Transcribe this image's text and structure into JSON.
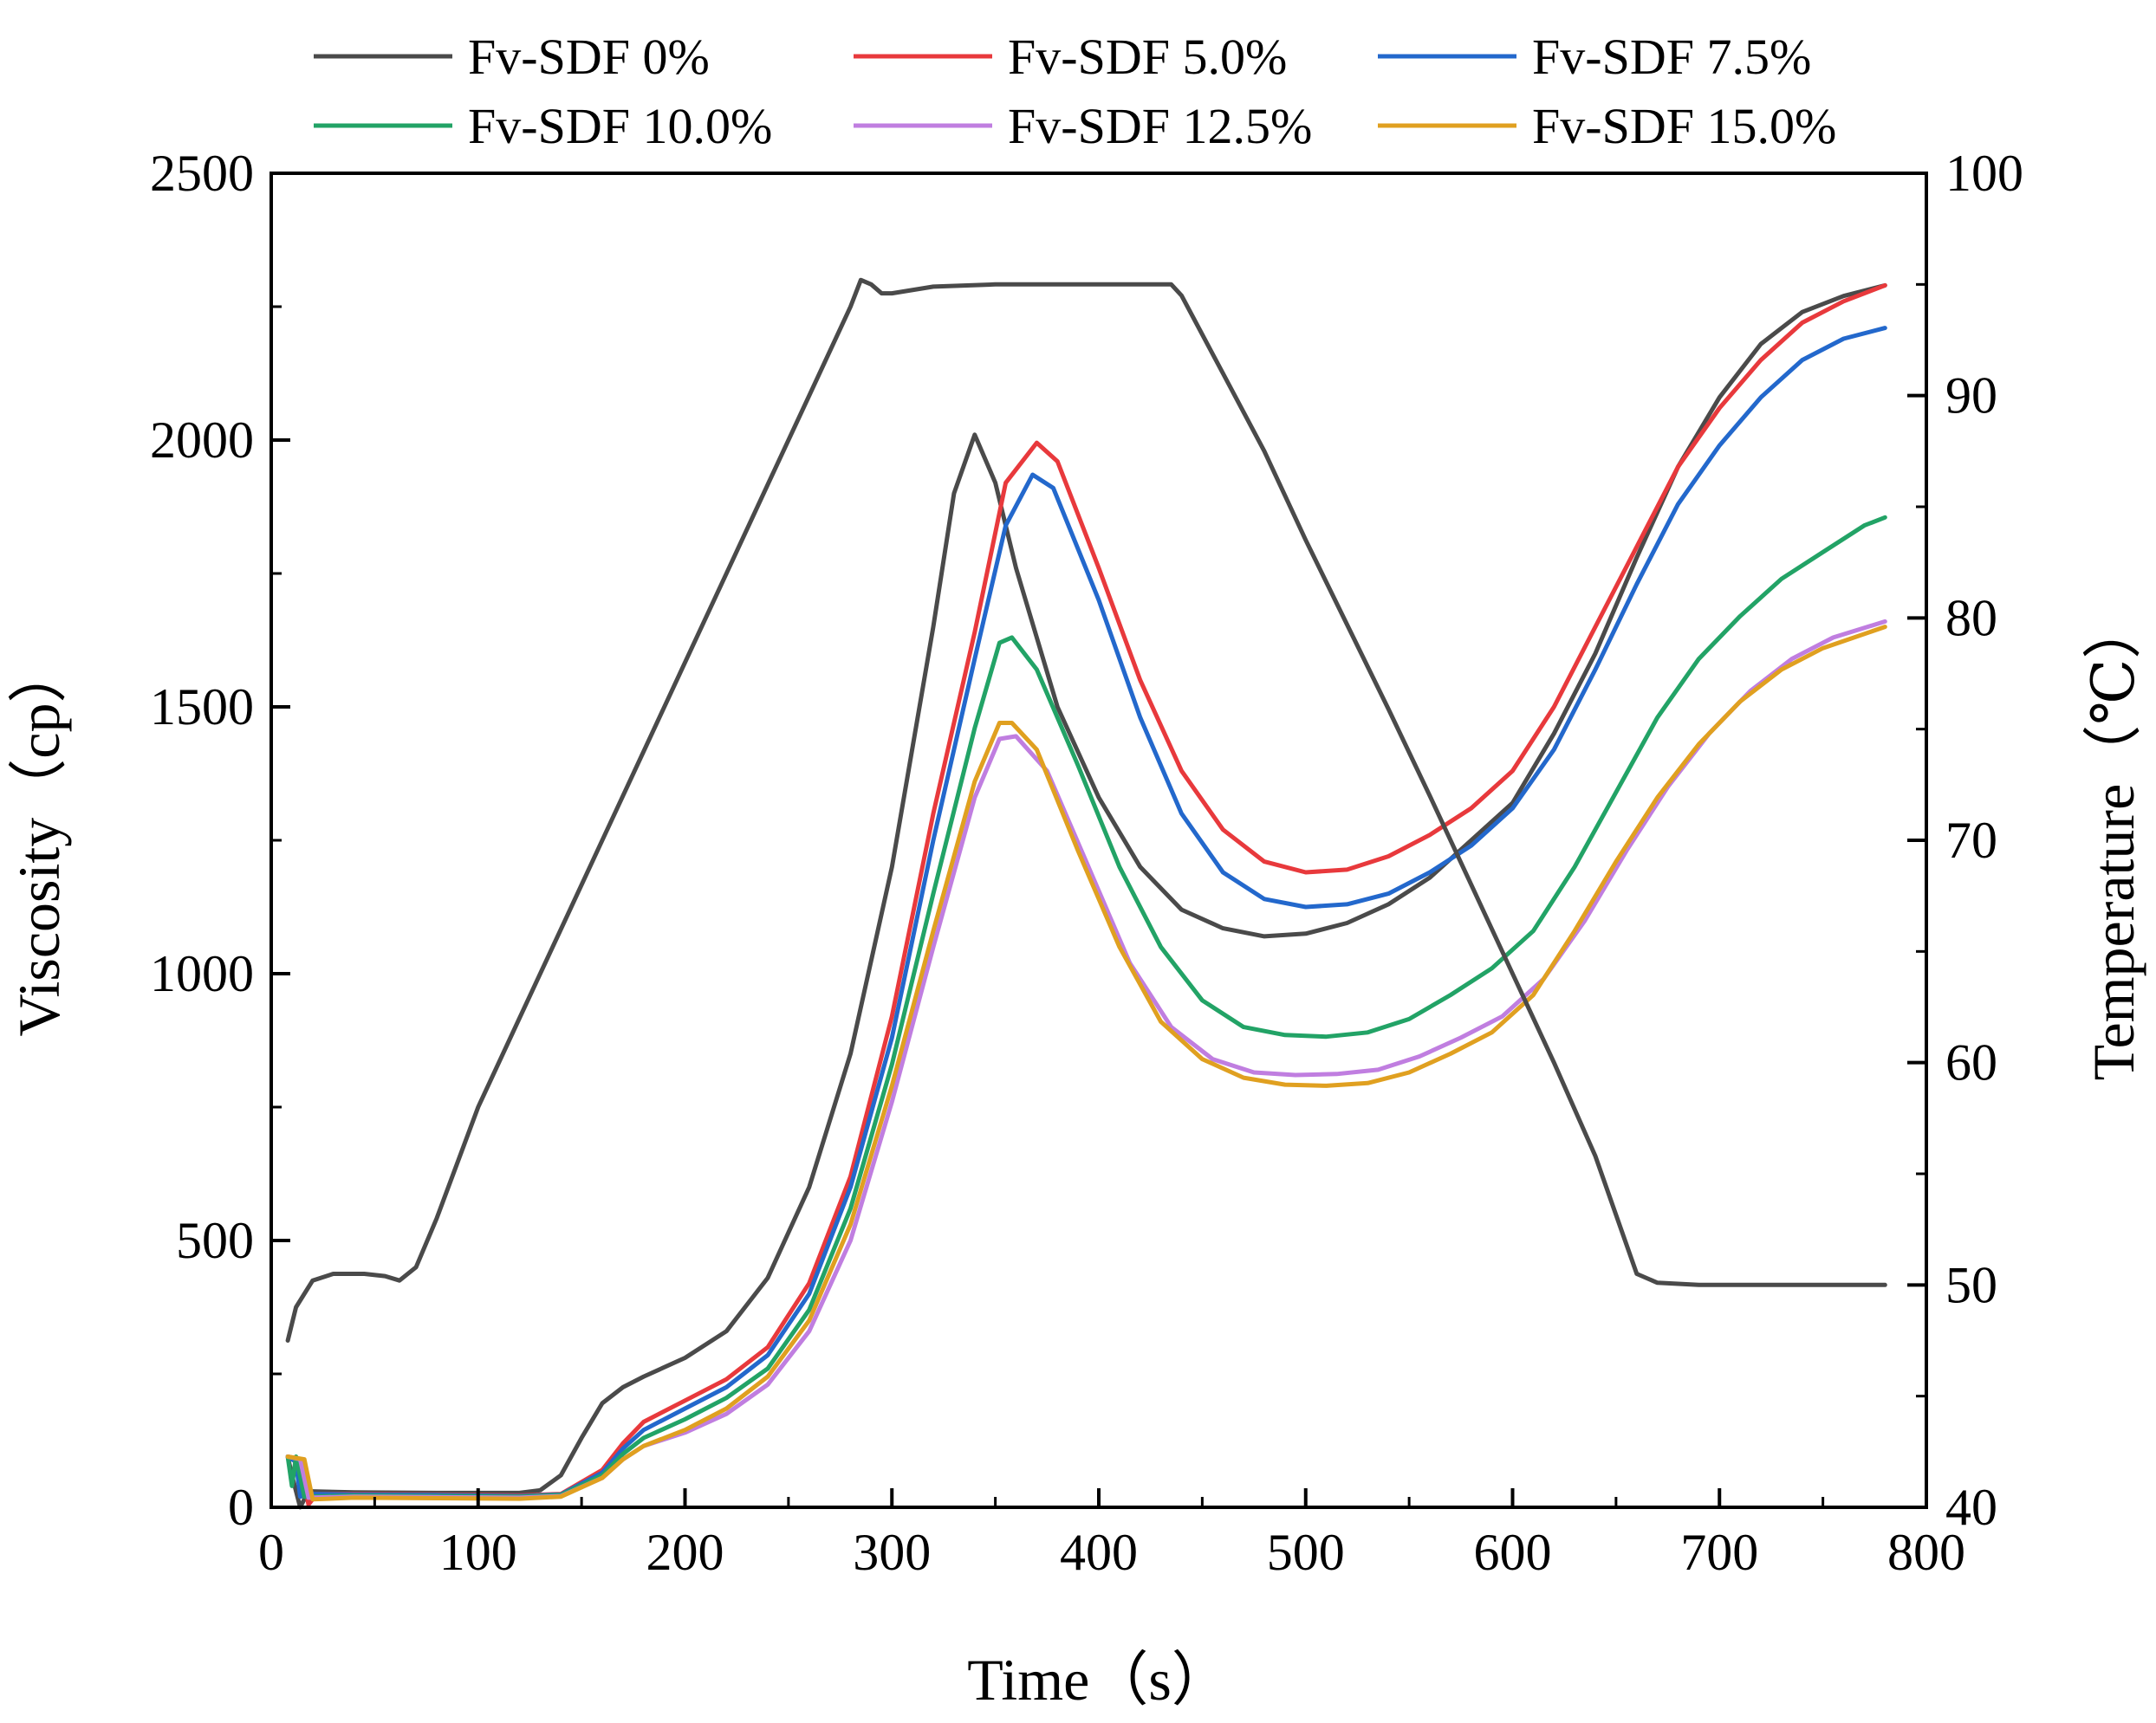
{
  "chart_data": {
    "type": "line",
    "title": "",
    "xlabel": "Time（s）",
    "ylabel_left": "Viscosity（cp）",
    "ylabel_right": "Temperature（℃）",
    "xlim": [
      0,
      800
    ],
    "ylim_left": [
      0,
      2500
    ],
    "ylim_right": [
      40,
      100
    ],
    "x_ticks": [
      "0",
      "100",
      "200",
      "300",
      "400",
      "500",
      "600",
      "700",
      "800"
    ],
    "y_ticks_left": [
      "0",
      "500",
      "1000",
      "1500",
      "2000",
      "2500"
    ],
    "y_ticks_right": [
      "40",
      "50",
      "60",
      "70",
      "80",
      "90",
      "100"
    ],
    "grid": false,
    "legend_position": "top",
    "series": [
      {
        "name": "Fv-SDF 0%",
        "color": "#4a4a4a",
        "axis": "left",
        "points": [
          [
            8,
            95
          ],
          [
            10,
            60
          ],
          [
            14,
            0
          ],
          [
            18,
            30
          ],
          [
            40,
            28
          ],
          [
            80,
            27
          ],
          [
            120,
            27
          ],
          [
            130,
            32
          ],
          [
            140,
            60
          ],
          [
            150,
            130
          ],
          [
            160,
            195
          ],
          [
            170,
            225
          ],
          [
            180,
            245
          ],
          [
            200,
            280
          ],
          [
            220,
            330
          ],
          [
            240,
            430
          ],
          [
            260,
            600
          ],
          [
            280,
            850
          ],
          [
            300,
            1200
          ],
          [
            320,
            1650
          ],
          [
            330,
            1900
          ],
          [
            340,
            2010
          ],
          [
            350,
            1920
          ],
          [
            360,
            1760
          ],
          [
            380,
            1500
          ],
          [
            400,
            1330
          ],
          [
            420,
            1200
          ],
          [
            440,
            1120
          ],
          [
            460,
            1085
          ],
          [
            480,
            1070
          ],
          [
            500,
            1075
          ],
          [
            520,
            1095
          ],
          [
            540,
            1130
          ],
          [
            560,
            1180
          ],
          [
            580,
            1250
          ],
          [
            600,
            1320
          ],
          [
            620,
            1450
          ],
          [
            640,
            1600
          ],
          [
            660,
            1780
          ],
          [
            680,
            1950
          ],
          [
            700,
            2080
          ],
          [
            720,
            2180
          ],
          [
            740,
            2240
          ],
          [
            760,
            2270
          ],
          [
            780,
            2290
          ]
        ]
      },
      {
        "name": "Fv-SDF 5.0%",
        "color": "#e8393c",
        "axis": "left",
        "points": [
          [
            8,
            95
          ],
          [
            14,
            90
          ],
          [
            18,
            5
          ],
          [
            22,
            25
          ],
          [
            40,
            25
          ],
          [
            80,
            24
          ],
          [
            120,
            22
          ],
          [
            140,
            25
          ],
          [
            160,
            70
          ],
          [
            170,
            120
          ],
          [
            180,
            160
          ],
          [
            200,
            200
          ],
          [
            220,
            240
          ],
          [
            240,
            300
          ],
          [
            260,
            420
          ],
          [
            280,
            620
          ],
          [
            300,
            920
          ],
          [
            320,
            1300
          ],
          [
            340,
            1640
          ],
          [
            355,
            1920
          ],
          [
            370,
            1995
          ],
          [
            380,
            1960
          ],
          [
            400,
            1760
          ],
          [
            420,
            1550
          ],
          [
            440,
            1380
          ],
          [
            460,
            1270
          ],
          [
            480,
            1210
          ],
          [
            500,
            1190
          ],
          [
            520,
            1195
          ],
          [
            540,
            1220
          ],
          [
            560,
            1260
          ],
          [
            580,
            1310
          ],
          [
            600,
            1380
          ],
          [
            620,
            1500
          ],
          [
            640,
            1650
          ],
          [
            660,
            1800
          ],
          [
            680,
            1950
          ],
          [
            700,
            2060
          ],
          [
            720,
            2150
          ],
          [
            740,
            2220
          ],
          [
            760,
            2260
          ],
          [
            780,
            2290
          ]
        ]
      },
      {
        "name": "Fv-SDF 7.5%",
        "color": "#2368cc",
        "axis": "left",
        "points": [
          [
            8,
            95
          ],
          [
            12,
            85
          ],
          [
            14,
            20
          ],
          [
            20,
            25
          ],
          [
            40,
            24
          ],
          [
            80,
            23
          ],
          [
            120,
            21
          ],
          [
            140,
            24
          ],
          [
            160,
            65
          ],
          [
            170,
            110
          ],
          [
            180,
            145
          ],
          [
            200,
            185
          ],
          [
            220,
            225
          ],
          [
            240,
            285
          ],
          [
            260,
            400
          ],
          [
            280,
            600
          ],
          [
            300,
            880
          ],
          [
            320,
            1250
          ],
          [
            340,
            1590
          ],
          [
            355,
            1840
          ],
          [
            368,
            1935
          ],
          [
            378,
            1910
          ],
          [
            400,
            1700
          ],
          [
            420,
            1480
          ],
          [
            440,
            1300
          ],
          [
            460,
            1190
          ],
          [
            480,
            1140
          ],
          [
            500,
            1125
          ],
          [
            520,
            1130
          ],
          [
            540,
            1150
          ],
          [
            560,
            1190
          ],
          [
            580,
            1240
          ],
          [
            600,
            1310
          ],
          [
            620,
            1420
          ],
          [
            640,
            1570
          ],
          [
            660,
            1730
          ],
          [
            680,
            1880
          ],
          [
            700,
            1990
          ],
          [
            720,
            2080
          ],
          [
            740,
            2150
          ],
          [
            760,
            2190
          ],
          [
            780,
            2210
          ]
        ]
      },
      {
        "name": "Fv-SDF 10.0%",
        "color": "#22a366",
        "axis": "left",
        "points": [
          [
            8,
            95
          ],
          [
            10,
            40
          ],
          [
            12,
            95
          ],
          [
            16,
            20
          ],
          [
            40,
            22
          ],
          [
            80,
            21
          ],
          [
            120,
            20
          ],
          [
            140,
            23
          ],
          [
            160,
            60
          ],
          [
            170,
            100
          ],
          [
            180,
            130
          ],
          [
            200,
            165
          ],
          [
            220,
            205
          ],
          [
            240,
            260
          ],
          [
            260,
            370
          ],
          [
            280,
            560
          ],
          [
            300,
            830
          ],
          [
            320,
            1150
          ],
          [
            340,
            1460
          ],
          [
            352,
            1620
          ],
          [
            358,
            1630
          ],
          [
            370,
            1570
          ],
          [
            390,
            1390
          ],
          [
            410,
            1200
          ],
          [
            430,
            1050
          ],
          [
            450,
            950
          ],
          [
            470,
            900
          ],
          [
            490,
            885
          ],
          [
            510,
            882
          ],
          [
            530,
            890
          ],
          [
            550,
            915
          ],
          [
            570,
            960
          ],
          [
            590,
            1010
          ],
          [
            610,
            1080
          ],
          [
            630,
            1200
          ],
          [
            650,
            1340
          ],
          [
            670,
            1480
          ],
          [
            690,
            1590
          ],
          [
            710,
            1670
          ],
          [
            730,
            1740
          ],
          [
            750,
            1790
          ],
          [
            770,
            1840
          ],
          [
            780,
            1855
          ]
        ]
      },
      {
        "name": "Fv-SDF 12.5%",
        "color": "#c07ee0",
        "axis": "left",
        "points": [
          [
            8,
            95
          ],
          [
            14,
            90
          ],
          [
            18,
            18
          ],
          [
            40,
            20
          ],
          [
            80,
            19
          ],
          [
            120,
            18
          ],
          [
            140,
            21
          ],
          [
            160,
            55
          ],
          [
            170,
            90
          ],
          [
            180,
            115
          ],
          [
            200,
            140
          ],
          [
            220,
            175
          ],
          [
            240,
            230
          ],
          [
            260,
            330
          ],
          [
            280,
            500
          ],
          [
            300,
            760
          ],
          [
            320,
            1050
          ],
          [
            340,
            1330
          ],
          [
            352,
            1440
          ],
          [
            360,
            1445
          ],
          [
            375,
            1380
          ],
          [
            395,
            1200
          ],
          [
            415,
            1020
          ],
          [
            435,
            900
          ],
          [
            455,
            840
          ],
          [
            475,
            815
          ],
          [
            495,
            810
          ],
          [
            515,
            812
          ],
          [
            535,
            820
          ],
          [
            555,
            845
          ],
          [
            575,
            880
          ],
          [
            595,
            920
          ],
          [
            615,
            990
          ],
          [
            635,
            1100
          ],
          [
            655,
            1230
          ],
          [
            675,
            1350
          ],
          [
            695,
            1450
          ],
          [
            715,
            1530
          ],
          [
            735,
            1590
          ],
          [
            755,
            1630
          ],
          [
            780,
            1660
          ]
        ]
      },
      {
        "name": "Fv-SDF 15.0%",
        "color": "#e0a020",
        "axis": "left",
        "points": [
          [
            8,
            95
          ],
          [
            16,
            90
          ],
          [
            20,
            15
          ],
          [
            40,
            18
          ],
          [
            80,
            17
          ],
          [
            120,
            16
          ],
          [
            140,
            20
          ],
          [
            160,
            55
          ],
          [
            170,
            90
          ],
          [
            180,
            115
          ],
          [
            200,
            145
          ],
          [
            220,
            185
          ],
          [
            240,
            245
          ],
          [
            260,
            350
          ],
          [
            280,
            530
          ],
          [
            300,
            790
          ],
          [
            320,
            1080
          ],
          [
            340,
            1360
          ],
          [
            352,
            1470
          ],
          [
            358,
            1470
          ],
          [
            370,
            1420
          ],
          [
            390,
            1230
          ],
          [
            410,
            1050
          ],
          [
            430,
            910
          ],
          [
            450,
            840
          ],
          [
            470,
            805
          ],
          [
            490,
            792
          ],
          [
            510,
            790
          ],
          [
            530,
            795
          ],
          [
            550,
            815
          ],
          [
            570,
            850
          ],
          [
            590,
            890
          ],
          [
            610,
            960
          ],
          [
            630,
            1080
          ],
          [
            650,
            1210
          ],
          [
            670,
            1330
          ],
          [
            690,
            1430
          ],
          [
            710,
            1510
          ],
          [
            730,
            1570
          ],
          [
            750,
            1610
          ],
          [
            780,
            1650
          ]
        ]
      },
      {
        "name": "Temperature",
        "color": "#4a4a4a",
        "axis": "right",
        "points": [
          [
            8,
            47.5
          ],
          [
            12,
            49
          ],
          [
            20,
            50.2
          ],
          [
            30,
            50.5
          ],
          [
            45,
            50.5
          ],
          [
            55,
            50.4
          ],
          [
            62,
            50.2
          ],
          [
            70,
            50.8
          ],
          [
            80,
            53
          ],
          [
            100,
            58
          ],
          [
            120,
            62
          ],
          [
            140,
            66
          ],
          [
            160,
            70
          ],
          [
            180,
            74
          ],
          [
            200,
            78
          ],
          [
            220,
            82
          ],
          [
            240,
            86
          ],
          [
            260,
            90
          ],
          [
            280,
            94
          ],
          [
            285,
            95.2
          ],
          [
            290,
            95
          ],
          [
            295,
            94.6
          ],
          [
            300,
            94.6
          ],
          [
            320,
            94.9
          ],
          [
            350,
            95
          ],
          [
            400,
            95
          ],
          [
            435,
            95
          ],
          [
            440,
            94.5
          ],
          [
            460,
            91
          ],
          [
            480,
            87.5
          ],
          [
            500,
            83.5
          ],
          [
            520,
            79.7
          ],
          [
            540,
            75.9
          ],
          [
            560,
            72
          ],
          [
            580,
            68
          ],
          [
            600,
            64
          ],
          [
            620,
            60
          ],
          [
            640,
            55.8
          ],
          [
            660,
            50.5
          ],
          [
            670,
            50.1
          ],
          [
            690,
            50
          ],
          [
            700,
            50
          ],
          [
            780,
            50
          ]
        ]
      }
    ],
    "legend": [
      {
        "label": "Fv-SDF 0%",
        "color": "#4a4a4a"
      },
      {
        "label": "Fv-SDF 5.0%",
        "color": "#e8393c"
      },
      {
        "label": "Fv-SDF 7.5%",
        "color": "#2368cc"
      },
      {
        "label": "Fv-SDF 10.0%",
        "color": "#22a366"
      },
      {
        "label": "Fv-SDF 12.5%",
        "color": "#c07ee0"
      },
      {
        "label": "Fv-SDF 15.0%",
        "color": "#e0a020"
      }
    ]
  }
}
